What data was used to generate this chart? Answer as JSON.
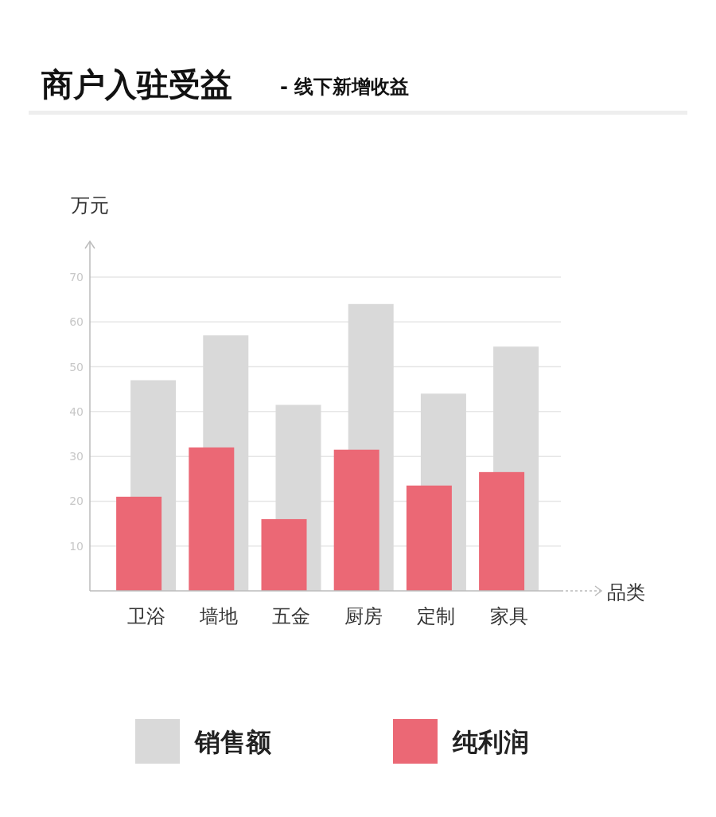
{
  "chart_data": {
    "type": "bar",
    "title": "商户入驻受益",
    "subtitle": "- 线下新增收益",
    "xlabel": "品类",
    "ylabel": "万元",
    "categories": [
      "卫浴",
      "墙地",
      "五金",
      "厨房",
      "定制",
      "家具"
    ],
    "series": [
      {
        "name": "销售额",
        "color": "#d9d9d9",
        "values": [
          47,
          57,
          41.5,
          64,
          44,
          54.5
        ]
      },
      {
        "name": "纯利润",
        "color": "#eb6875",
        "values": [
          21,
          32,
          16,
          31.5,
          23.5,
          26.5
        ]
      }
    ],
    "ylim": [
      0,
      78
    ],
    "yticks": [
      {
        "value": 0,
        "label": null
      },
      10,
      20,
      30,
      40,
      50,
      60,
      70
    ],
    "grid": "y",
    "legend": "bottom"
  }
}
